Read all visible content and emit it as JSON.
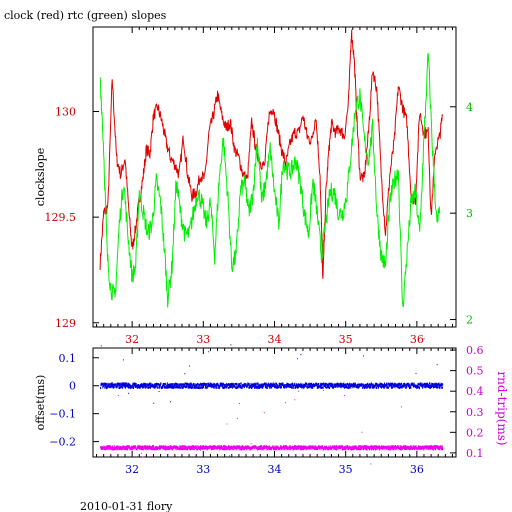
{
  "title": "clock (red) rtc (green) slopes",
  "footer": "2010-01-31 flory",
  "colors": {
    "clock": "#dd0000",
    "rtc": "#00ee00",
    "offset": "#0000dd",
    "rndtrip": "#ee00ee",
    "axis": "#000000",
    "ylabel_top": "#cc0000",
    "ylabel_right_top": "#00bb00",
    "ylabel_left_bottom": "#0000cc",
    "ylabel_right_bottom": "#cc00cc"
  },
  "chart_data": [
    {
      "type": "line",
      "name": "slopes",
      "ylabel": "clockslope",
      "xlim": [
        31.45,
        36.55
      ],
      "ylim": [
        128.98,
        130.4
      ],
      "y2lim": [
        1.93,
        4.75
      ],
      "x_ticks": [
        32,
        33,
        34,
        35,
        36
      ],
      "y_ticks": [
        129,
        129.5,
        130
      ],
      "y_tick_labels": [
        "129",
        "129.5",
        "130"
      ],
      "y2_ticks": [
        2,
        3,
        4
      ],
      "y2_tick_labels": [
        "2",
        "3",
        "4"
      ],
      "x_tick_labels": [
        "32",
        "33",
        "34",
        "35",
        "36"
      ],
      "series": [
        {
          "color_key": "clock",
          "axis": "left",
          "x": [
            31.55,
            31.6,
            31.66,
            31.72,
            31.78,
            31.84,
            31.9,
            31.96,
            32.0,
            32.05,
            32.1,
            32.15,
            32.2,
            32.25,
            32.3,
            32.36,
            32.42,
            32.48,
            32.54,
            32.6,
            32.66,
            32.72,
            32.78,
            32.84,
            32.9,
            32.96,
            33.02,
            33.08,
            33.14,
            33.2,
            33.26,
            33.32,
            33.38,
            33.44,
            33.5,
            33.56,
            33.62,
            33.68,
            33.74,
            33.8,
            33.86,
            33.92,
            33.98,
            34.04,
            34.1,
            34.16,
            34.22,
            34.28,
            34.34,
            34.4,
            34.46,
            34.52,
            34.58,
            34.64,
            34.68,
            34.72,
            34.76,
            34.8,
            34.86,
            34.92,
            34.98,
            35.04,
            35.08,
            35.12,
            35.16,
            35.2,
            35.26,
            35.32,
            35.38,
            35.44,
            35.5,
            35.56,
            35.62,
            35.68,
            35.74,
            35.8,
            35.86,
            35.92,
            35.98,
            36.04,
            36.1,
            36.16,
            36.2,
            36.26,
            36.32,
            36.36
          ],
          "y": [
            129.28,
            129.52,
            129.55,
            130.16,
            129.78,
            129.7,
            129.78,
            129.5,
            129.35,
            129.45,
            129.58,
            129.68,
            129.82,
            129.8,
            129.98,
            130.02,
            129.95,
            129.85,
            129.78,
            129.75,
            129.7,
            129.88,
            129.7,
            129.6,
            129.62,
            129.7,
            129.68,
            129.9,
            129.98,
            130.08,
            129.98,
            129.92,
            129.95,
            129.82,
            129.78,
            129.7,
            129.68,
            129.95,
            129.82,
            129.76,
            129.74,
            129.98,
            130.02,
            129.92,
            129.82,
            129.75,
            129.85,
            129.9,
            129.9,
            129.98,
            129.88,
            129.86,
            129.98,
            129.7,
            129.2,
            129.6,
            129.8,
            129.94,
            129.9,
            129.92,
            129.88,
            130.04,
            130.38,
            130.25,
            129.95,
            129.7,
            129.68,
            129.9,
            130.2,
            130.1,
            129.7,
            129.42,
            129.7,
            129.85,
            130.12,
            130.02,
            129.95,
            129.6,
            129.58,
            130.0,
            129.9,
            129.9,
            129.5,
            129.82,
            129.88,
            129.98
          ]
        },
        {
          "color_key": "rtc",
          "axis": "right",
          "x": [
            31.55,
            31.6,
            31.65,
            31.7,
            31.76,
            31.82,
            31.88,
            31.94,
            32.0,
            32.05,
            32.1,
            32.16,
            32.22,
            32.28,
            32.34,
            32.4,
            32.46,
            32.5,
            32.56,
            32.62,
            32.68,
            32.74,
            32.8,
            32.86,
            32.92,
            32.98,
            33.04,
            33.1,
            33.16,
            33.22,
            33.28,
            33.34,
            33.4,
            33.46,
            33.52,
            33.58,
            33.64,
            33.7,
            33.76,
            33.82,
            33.88,
            33.94,
            34.0,
            34.06,
            34.12,
            34.18,
            34.24,
            34.3,
            34.36,
            34.42,
            34.48,
            34.54,
            34.6,
            34.66,
            34.72,
            34.78,
            34.84,
            34.9,
            34.96,
            35.02,
            35.08,
            35.14,
            35.2,
            35.26,
            35.32,
            35.38,
            35.44,
            35.5,
            35.56,
            35.62,
            35.68,
            35.74,
            35.8,
            35.86,
            35.92,
            35.98,
            36.04,
            36.1,
            36.16,
            36.22,
            36.28,
            36.32
          ],
          "y": [
            4.3,
            3.6,
            2.6,
            2.3,
            2.2,
            2.9,
            3.3,
            2.8,
            2.4,
            2.5,
            3.2,
            3.0,
            2.8,
            2.9,
            3.3,
            3.1,
            2.6,
            2.2,
            2.5,
            3.3,
            3.0,
            2.8,
            2.8,
            3.0,
            3.2,
            3.1,
            2.9,
            3.1,
            2.6,
            3.3,
            3.7,
            3.2,
            2.5,
            2.6,
            3.2,
            3.3,
            3.0,
            3.2,
            3.7,
            3.1,
            3.3,
            3.6,
            3.2,
            2.9,
            3.5,
            3.4,
            3.4,
            3.5,
            3.3,
            3.0,
            2.8,
            3.3,
            3.0,
            2.6,
            2.9,
            3.2,
            3.2,
            3.0,
            3.0,
            3.2,
            3.6,
            4.0,
            4.1,
            3.7,
            3.5,
            3.8,
            3.0,
            2.6,
            2.5,
            3.1,
            3.3,
            3.4,
            2.1,
            2.6,
            3.1,
            3.2,
            2.8,
            3.7,
            4.5,
            3.6,
            2.9,
            3.0
          ]
        }
      ]
    },
    {
      "type": "scatter",
      "name": "offset-rndtrip",
      "ylabel": "offset(ms)",
      "y2label": "rnd-trip(ms)",
      "xlim": [
        31.45,
        36.55
      ],
      "ylim": [
        -0.255,
        0.135
      ],
      "y2lim": [
        0.08,
        0.61
      ],
      "x_ticks": [
        32,
        33,
        34,
        35,
        36
      ],
      "x_tick_labels": [
        "32",
        "33",
        "34",
        "35",
        "36"
      ],
      "y_ticks": [
        -0.2,
        -0.1,
        0,
        0.1
      ],
      "y_tick_labels": [
        "−0.2",
        "−0.1",
        "0",
        "0.1"
      ],
      "y2_ticks": [
        0.1,
        0.2,
        0.3,
        0.4,
        0.5,
        0.6
      ],
      "y2_tick_labels": [
        "0.1",
        "0.2",
        "0.3",
        "0.4",
        "0.5",
        "0.6"
      ],
      "series": [
        {
          "color_key": "offset",
          "axis": "left",
          "x_range": [
            31.55,
            36.36
          ],
          "center": 0.0,
          "spread": 0.008
        },
        {
          "color_key": "rndtrip",
          "axis": "right",
          "x_range": [
            31.55,
            36.36
          ],
          "center": 0.125,
          "spread": 0.008
        }
      ]
    }
  ]
}
